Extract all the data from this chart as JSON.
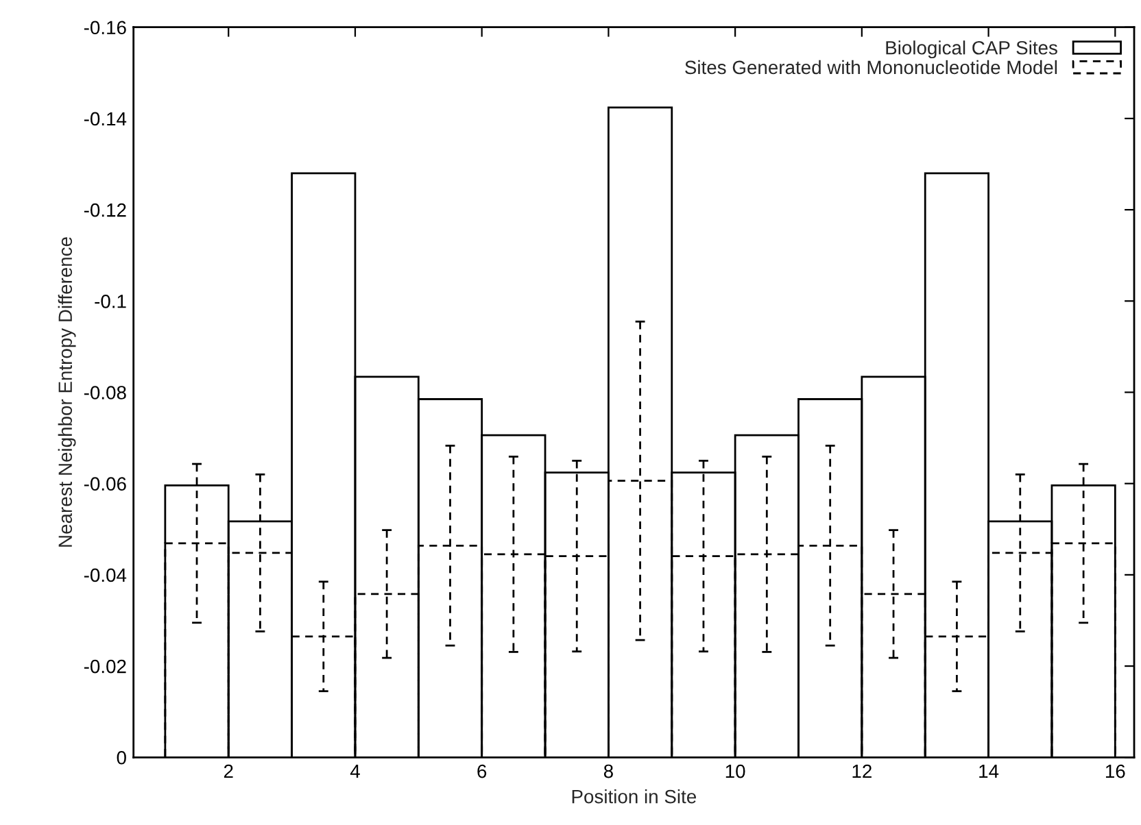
{
  "chart_data": {
    "type": "bar",
    "xlabel": "Position in Site",
    "ylabel": "Nearest Neighbor Entropy Difference",
    "x": [
      1.5,
      2.5,
      3.5,
      4.5,
      5.5,
      6.5,
      7.5,
      8.5,
      9.5,
      10.5,
      11.5,
      12.5,
      13.5,
      14.5,
      15.5
    ],
    "series": [
      {
        "name": "Biological CAP Sites",
        "color": "#000000",
        "line_style": "solid",
        "values": [
          -0.0596,
          -0.0517,
          -0.128,
          -0.0834,
          -0.0785,
          -0.0706,
          -0.0624,
          -0.1424,
          -0.0624,
          -0.0706,
          -0.0785,
          -0.0834,
          -0.128,
          -0.0517,
          -0.0596
        ]
      },
      {
        "name": "Sites Generated with Mononucleotide Model",
        "color": "#000000",
        "line_style": "dashed",
        "values": [
          -0.0469,
          -0.0448,
          -0.0265,
          -0.0358,
          -0.0464,
          -0.0445,
          -0.0441,
          -0.0606,
          -0.0441,
          -0.0445,
          -0.0464,
          -0.0358,
          -0.0265,
          -0.0448,
          -0.0469
        ],
        "errors": [
          0.0174,
          0.0172,
          0.012,
          0.014,
          0.0219,
          0.0214,
          0.0209,
          0.0349,
          0.0209,
          0.0214,
          0.0219,
          0.014,
          0.012,
          0.0172,
          0.0174
        ]
      }
    ],
    "xlim": [
      0.5,
      16.3
    ],
    "xticks": [
      2,
      4,
      6,
      8,
      10,
      12,
      14,
      16
    ],
    "ylim": [
      0,
      -0.16
    ],
    "yticks": [
      0,
      -0.02,
      -0.04,
      -0.06,
      -0.08,
      -0.1,
      -0.12,
      -0.14,
      -0.16
    ],
    "grid": false,
    "legend": "top right"
  }
}
